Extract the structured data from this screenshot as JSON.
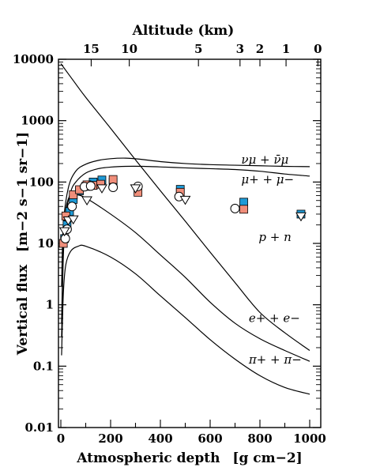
{
  "chart_data": {
    "type": "line",
    "xlabel": "Atmospheric depth",
    "xlabel_unit": "[g cm−2]",
    "ylabel": "Vertical flux",
    "ylabel_unit": "[m−2 s−1 sr−1]",
    "top_xlabel": "Altitude (km)",
    "y_scale": "log",
    "xlim": [
      0,
      1000
    ],
    "ylim": [
      0.01,
      10000
    ],
    "grid": false,
    "x_ticks": [
      {
        "value": 0,
        "label": "0"
      },
      {
        "value": 200,
        "label": "200"
      },
      {
        "value": 400,
        "label": "400"
      },
      {
        "value": 600,
        "label": "600"
      },
      {
        "value": 800,
        "label": "800"
      },
      {
        "value": 1000,
        "label": "1000"
      }
    ],
    "y_ticks": [
      {
        "value": 10000,
        "label": "10000"
      },
      {
        "value": 1000,
        "label": "1000"
      },
      {
        "value": 100,
        "label": "100"
      },
      {
        "value": 10,
        "label": "10"
      },
      {
        "value": 1,
        "label": "1"
      },
      {
        "value": 0.1,
        "label": "0.1"
      },
      {
        "value": 0.01,
        "label": "0.01"
      }
    ],
    "top_ticks": [
      {
        "label": "15",
        "depth": 122
      },
      {
        "label": "10",
        "depth": 275
      },
      {
        "label": "5",
        "depth": 553
      },
      {
        "label": "3",
        "depth": 720
      },
      {
        "label": "2",
        "depth": 800
      },
      {
        "label": "1",
        "depth": 905
      },
      {
        "label": "0",
        "depth": 1033
      }
    ],
    "series": [
      {
        "label": "νμ + ν̄μ",
        "label_at": {
          "x": 725,
          "y": 200
        },
        "points": [
          [
            3,
            2
          ],
          [
            10,
            20
          ],
          [
            30,
            80
          ],
          [
            60,
            150
          ],
          [
            100,
            195
          ],
          [
            150,
            225
          ],
          [
            200,
            240
          ],
          [
            260,
            245
          ],
          [
            320,
            235
          ],
          [
            400,
            215
          ],
          [
            500,
            200
          ],
          [
            600,
            192
          ],
          [
            700,
            188
          ],
          [
            800,
            184
          ],
          [
            900,
            180
          ],
          [
            1000,
            178
          ]
        ]
      },
      {
        "label": "μ+ + μ−",
        "label_at": {
          "x": 725,
          "y": 95
        },
        "points": [
          [
            3,
            0.3
          ],
          [
            10,
            6
          ],
          [
            20,
            30
          ],
          [
            40,
            70
          ],
          [
            60,
            100
          ],
          [
            100,
            140
          ],
          [
            150,
            165
          ],
          [
            200,
            175
          ],
          [
            260,
            180
          ],
          [
            330,
            180
          ],
          [
            420,
            175
          ],
          [
            500,
            170
          ],
          [
            600,
            165
          ],
          [
            700,
            160
          ],
          [
            800,
            150
          ],
          [
            900,
            135
          ],
          [
            1000,
            125
          ]
        ]
      },
      {
        "label": "p + n",
        "label_at": {
          "x": 795,
          "y": 11
        },
        "points": [
          [
            0,
            8500
          ],
          [
            50,
            4500
          ],
          [
            100,
            2400
          ],
          [
            200,
            750
          ],
          [
            300,
            230
          ],
          [
            400,
            72
          ],
          [
            500,
            23
          ],
          [
            600,
            7.2
          ],
          [
            700,
            2.3
          ],
          [
            800,
            0.75
          ],
          [
            900,
            0.35
          ],
          [
            1000,
            0.18
          ]
        ]
      },
      {
        "label": "e+ + e−",
        "label_at": {
          "x": 755,
          "y": 0.52
        },
        "points": [
          [
            3,
            0.5
          ],
          [
            10,
            10
          ],
          [
            20,
            35
          ],
          [
            35,
            58
          ],
          [
            60,
            62
          ],
          [
            100,
            55
          ],
          [
            200,
            30
          ],
          [
            300,
            15
          ],
          [
            400,
            6.5
          ],
          [
            500,
            2.8
          ],
          [
            600,
            1.1
          ],
          [
            700,
            0.5
          ],
          [
            800,
            0.28
          ],
          [
            900,
            0.18
          ],
          [
            1000,
            0.12
          ]
        ]
      },
      {
        "label": "π+ + π−",
        "label_at": {
          "x": 755,
          "y": 0.11
        },
        "points": [
          [
            3,
            0.15
          ],
          [
            10,
            1.5
          ],
          [
            20,
            4.5
          ],
          [
            40,
            7.5
          ],
          [
            70,
            9
          ],
          [
            100,
            9
          ],
          [
            200,
            6
          ],
          [
            300,
            3.2
          ],
          [
            400,
            1.4
          ],
          [
            500,
            0.62
          ],
          [
            600,
            0.27
          ],
          [
            700,
            0.13
          ],
          [
            800,
            0.07
          ],
          [
            900,
            0.045
          ],
          [
            1000,
            0.035
          ]
        ]
      }
    ],
    "markers": [
      {
        "marker": "filled-blue-square",
        "color": "#1e9ad6",
        "points": [
          [
            15,
            12
          ],
          [
            25,
            20
          ],
          [
            35,
            33
          ],
          [
            50,
            52
          ],
          [
            75,
            72
          ],
          [
            100,
            85
          ],
          [
            130,
            100
          ],
          [
            165,
            108
          ],
          [
            210,
            100
          ],
          [
            480,
            76
          ],
          [
            735,
            47
          ],
          [
            965,
            30
          ]
        ]
      },
      {
        "marker": "filled-salmon-square",
        "color": "#f08e7a",
        "points": [
          [
            10,
            10
          ],
          [
            20,
            28
          ],
          [
            50,
            62
          ],
          [
            75,
            75
          ],
          [
            105,
            90
          ],
          [
            130,
            88
          ],
          [
            160,
            92
          ],
          [
            210,
            110
          ],
          [
            310,
            68
          ],
          [
            480,
            68
          ],
          [
            735,
            36
          ]
        ]
      },
      {
        "marker": "open-circle",
        "color": "#000000",
        "points": [
          [
            18,
            12
          ],
          [
            25,
            17
          ],
          [
            45,
            40
          ],
          [
            95,
            84
          ],
          [
            120,
            86
          ],
          [
            210,
            82
          ],
          [
            310,
            85
          ],
          [
            475,
            58
          ],
          [
            700,
            37
          ]
        ]
      },
      {
        "marker": "open-triangle-down",
        "color": "#000000",
        "points": [
          [
            15,
            16
          ],
          [
            30,
            24
          ],
          [
            50,
            25
          ],
          [
            105,
            51
          ],
          [
            165,
            80
          ],
          [
            300,
            80
          ],
          [
            500,
            52
          ],
          [
            965,
            28
          ]
        ]
      }
    ]
  }
}
